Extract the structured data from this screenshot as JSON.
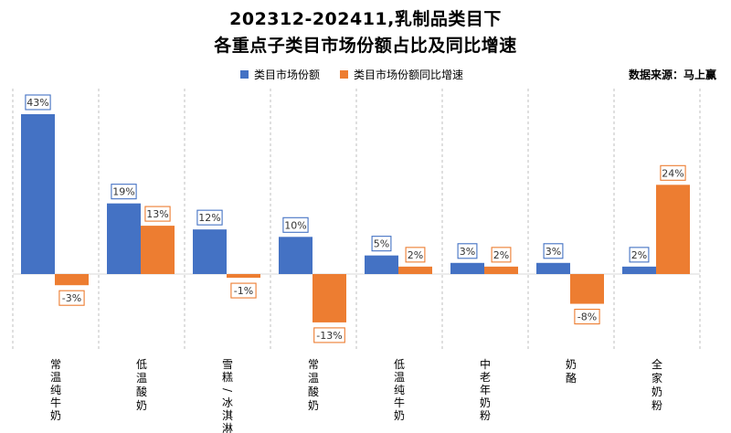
{
  "header": {
    "title_line1": "202312-202411,乳制品类目下",
    "title_line2": "各重点子类目市场份额占比及同比增速",
    "source": "数据来源：马上赢"
  },
  "colors": {
    "share": "#4472C4",
    "growth": "#ED7D31",
    "divider": "#BFBFBF"
  },
  "chart_data": {
    "type": "bar",
    "categories": [
      "常温纯牛奶",
      "低温酸奶",
      "雪糕/冰淇淋",
      "常温酸奶",
      "低温纯牛奶",
      "中老年奶粉",
      "奶酪",
      "全家奶粉"
    ],
    "series": [
      {
        "name": "类目市场份额",
        "values": [
          43,
          19,
          12,
          10,
          5,
          3,
          3,
          2
        ],
        "labels": [
          "43%",
          "19%",
          "12%",
          "10%",
          "5%",
          "3%",
          "3%",
          "2%"
        ]
      },
      {
        "name": "类目市场份额同比增速",
        "values": [
          -3,
          13,
          -1,
          -13,
          2,
          2,
          -8,
          24
        ],
        "labels": [
          "-3%",
          "13%",
          "-1%",
          "-13%",
          "2%",
          "2%",
          "-8%",
          "24%"
        ]
      }
    ],
    "ylim": [
      -20,
      50
    ],
    "legend_position": "top",
    "grid": false
  }
}
